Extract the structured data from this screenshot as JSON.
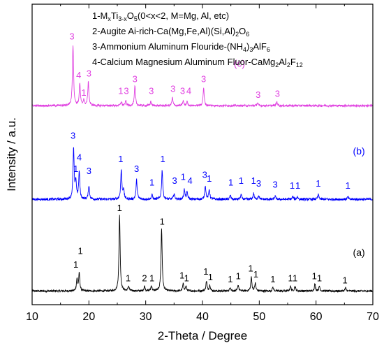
{
  "chart_data": {
    "type": "line",
    "xlabel": "2-Theta / Degree",
    "ylabel": "Intensity / a.u.",
    "xlim": [
      10,
      70
    ],
    "x_ticks": [
      "10",
      "20",
      "30",
      "40",
      "50",
      "60",
      "70"
    ],
    "y_ticks": "none",
    "legend": {
      "placement": "top-right",
      "entries": [
        {
          "parts": [
            [
              "1-M",
              ""
            ],
            [
              "x",
              "sub"
            ],
            [
              "Ti",
              ""
            ],
            [
              "3-x",
              "sub"
            ],
            [
              "O",
              ""
            ],
            [
              "5",
              "sub"
            ],
            [
              "(0<x<2, M=Mg, Al, etc)",
              ""
            ]
          ]
        },
        {
          "parts": [
            [
              "2-Augite Ai-rich-Ca(Mg,Fe,Al)(Si,Al)",
              ""
            ],
            [
              "2",
              "sub"
            ],
            [
              "O",
              ""
            ],
            [
              "6",
              "sub"
            ]
          ]
        },
        {
          "parts": [
            [
              "3-Ammonium Aluminum Flouride-(NH",
              ""
            ],
            [
              "4",
              "sub"
            ],
            [
              ")",
              ""
            ],
            [
              "3",
              "sub"
            ],
            [
              "AlF",
              ""
            ],
            [
              "6",
              "sub"
            ]
          ]
        },
        {
          "parts": [
            [
              "4-Calcium Magnesium Aluminum Fluor-CaMg",
              ""
            ],
            [
              "2",
              "sub"
            ],
            [
              "Al",
              ""
            ],
            [
              "2",
              "sub"
            ],
            [
              "F",
              ""
            ],
            [
              "12",
              "sub"
            ]
          ]
        }
      ]
    },
    "series": [
      {
        "label": "(a)",
        "color": "#000000",
        "baseline": 0.0,
        "noise": 0.05,
        "peaks": [
          {
            "x": 17.9,
            "h": 0.3
          },
          {
            "x": 18.3,
            "h": 0.45
          },
          {
            "x": 25.4,
            "h": 1.95
          },
          {
            "x": 27.0,
            "h": 0.12
          },
          {
            "x": 29.8,
            "h": 0.12
          },
          {
            "x": 31.0,
            "h": 0.13
          },
          {
            "x": 32.8,
            "h": 1.6
          },
          {
            "x": 36.6,
            "h": 0.18
          },
          {
            "x": 37.1,
            "h": 0.12
          },
          {
            "x": 40.7,
            "h": 0.25
          },
          {
            "x": 41.3,
            "h": 0.15
          },
          {
            "x": 44.9,
            "h": 0.1
          },
          {
            "x": 46.3,
            "h": 0.15
          },
          {
            "x": 48.6,
            "h": 0.35
          },
          {
            "x": 49.3,
            "h": 0.2
          },
          {
            "x": 52.4,
            "h": 0.1
          },
          {
            "x": 55.5,
            "h": 0.12
          },
          {
            "x": 56.3,
            "h": 0.12
          },
          {
            "x": 59.8,
            "h": 0.18
          },
          {
            "x": 60.6,
            "h": 0.12
          },
          {
            "x": 65.2,
            "h": 0.08
          }
        ],
        "peak_labels": [
          {
            "x": 17.7,
            "y": 0.6,
            "text": "1"
          },
          {
            "x": 18.5,
            "y": 0.95,
            "text": "1"
          },
          {
            "x": 25.4,
            "y": 2.05,
            "text": "1"
          },
          {
            "x": 26.9,
            "y": 0.25,
            "text": "1"
          },
          {
            "x": 29.8,
            "y": 0.25,
            "text": "2"
          },
          {
            "x": 31.1,
            "y": 0.25,
            "text": "1"
          },
          {
            "x": 32.9,
            "y": 1.7,
            "text": "1"
          },
          {
            "x": 36.4,
            "y": 0.32,
            "text": "1"
          },
          {
            "x": 37.2,
            "y": 0.25,
            "text": "1"
          },
          {
            "x": 40.6,
            "y": 0.42,
            "text": "1"
          },
          {
            "x": 41.4,
            "y": 0.28,
            "text": "1"
          },
          {
            "x": 44.9,
            "y": 0.22,
            "text": "1"
          },
          {
            "x": 46.3,
            "y": 0.3,
            "text": "1"
          },
          {
            "x": 48.5,
            "y": 0.5,
            "text": "1"
          },
          {
            "x": 49.4,
            "y": 0.35,
            "text": "1"
          },
          {
            "x": 52.4,
            "y": 0.22,
            "text": "1"
          },
          {
            "x": 55.5,
            "y": 0.25,
            "text": "1"
          },
          {
            "x": 56.3,
            "y": 0.25,
            "text": "1"
          },
          {
            "x": 59.7,
            "y": 0.3,
            "text": "1"
          },
          {
            "x": 60.6,
            "y": 0.25,
            "text": "1"
          },
          {
            "x": 65.1,
            "y": 0.2,
            "text": "1"
          }
        ],
        "name_label": {
          "x": 66.5,
          "y": 0.9
        }
      },
      {
        "label": "(b)",
        "color": "#0000ff",
        "baseline": 2.35,
        "noise": 0.06,
        "peaks": [
          {
            "x": 17.3,
            "h": 1.3
          },
          {
            "x": 17.7,
            "h": 0.45
          },
          {
            "x": 18.3,
            "h": 0.7
          },
          {
            "x": 20.0,
            "h": 0.35
          },
          {
            "x": 25.7,
            "h": 0.75
          },
          {
            "x": 26.1,
            "h": 0.25
          },
          {
            "x": 28.4,
            "h": 0.5
          },
          {
            "x": 31.1,
            "h": 0.12
          },
          {
            "x": 32.9,
            "h": 0.75
          },
          {
            "x": 35.0,
            "h": 0.15
          },
          {
            "x": 36.8,
            "h": 0.25
          },
          {
            "x": 37.3,
            "h": 0.18
          },
          {
            "x": 40.5,
            "h": 0.35
          },
          {
            "x": 41.2,
            "h": 0.25
          },
          {
            "x": 44.9,
            "h": 0.1
          },
          {
            "x": 46.8,
            "h": 0.12
          },
          {
            "x": 49.0,
            "h": 0.15
          },
          {
            "x": 49.9,
            "h": 0.1
          },
          {
            "x": 52.8,
            "h": 0.08
          },
          {
            "x": 55.9,
            "h": 0.07
          },
          {
            "x": 56.7,
            "h": 0.07
          },
          {
            "x": 60.4,
            "h": 0.12
          },
          {
            "x": 65.6,
            "h": 0.06
          }
        ],
        "peak_labels": [
          {
            "x": 17.2,
            "y": 3.9,
            "text": "3"
          },
          {
            "x": 17.7,
            "y": 3.05,
            "text": "1"
          },
          {
            "x": 18.3,
            "y": 3.35,
            "text": "4"
          },
          {
            "x": 20.0,
            "y": 3.0,
            "text": "3"
          },
          {
            "x": 25.6,
            "y": 3.3,
            "text": "1"
          },
          {
            "x": 28.4,
            "y": 3.05,
            "text": "3"
          },
          {
            "x": 31.1,
            "y": 2.7,
            "text": "1"
          },
          {
            "x": 33.0,
            "y": 3.3,
            "text": "1"
          },
          {
            "x": 35.1,
            "y": 2.75,
            "text": "3"
          },
          {
            "x": 36.6,
            "y": 2.85,
            "text": "1"
          },
          {
            "x": 37.8,
            "y": 2.75,
            "text": "4"
          },
          {
            "x": 40.4,
            "y": 2.9,
            "text": "3"
          },
          {
            "x": 41.2,
            "y": 2.8,
            "text": "1"
          },
          {
            "x": 45.0,
            "y": 2.7,
            "text": "1"
          },
          {
            "x": 46.8,
            "y": 2.75,
            "text": "1"
          },
          {
            "x": 49.0,
            "y": 2.75,
            "text": "1"
          },
          {
            "x": 49.9,
            "y": 2.68,
            "text": "3"
          },
          {
            "x": 52.8,
            "y": 2.65,
            "text": "3"
          },
          {
            "x": 55.8,
            "y": 2.62,
            "text": "1"
          },
          {
            "x": 56.8,
            "y": 2.62,
            "text": "1"
          },
          {
            "x": 60.4,
            "y": 2.68,
            "text": "1"
          },
          {
            "x": 65.6,
            "y": 2.62,
            "text": "1"
          }
        ],
        "name_label": {
          "x": 66.5,
          "y": 3.5
        }
      },
      {
        "label": "(c)",
        "color": "#e040e0",
        "baseline": 4.75,
        "noise": 0.05,
        "peaks": [
          {
            "x": 17.2,
            "h": 1.55
          },
          {
            "x": 18.4,
            "h": 0.55
          },
          {
            "x": 19.1,
            "h": 0.15
          },
          {
            "x": 19.9,
            "h": 0.6
          },
          {
            "x": 25.7,
            "h": 0.1
          },
          {
            "x": 26.5,
            "h": 0.12
          },
          {
            "x": 28.1,
            "h": 0.5
          },
          {
            "x": 30.9,
            "h": 0.1
          },
          {
            "x": 34.7,
            "h": 0.2
          },
          {
            "x": 36.6,
            "h": 0.12
          },
          {
            "x": 37.3,
            "h": 0.1
          },
          {
            "x": 40.2,
            "h": 0.45
          },
          {
            "x": 49.7,
            "h": 0.07
          },
          {
            "x": 53.1,
            "h": 0.1
          }
        ],
        "peak_labels": [
          {
            "x": 17.0,
            "y": 6.45,
            "text": "3"
          },
          {
            "x": 18.2,
            "y": 5.45,
            "text": "4"
          },
          {
            "x": 19.1,
            "y": 5.0,
            "text": "1"
          },
          {
            "x": 20.0,
            "y": 5.5,
            "text": "3"
          },
          {
            "x": 25.6,
            "y": 5.05,
            "text": "1"
          },
          {
            "x": 26.6,
            "y": 5.05,
            "text": "3"
          },
          {
            "x": 28.1,
            "y": 5.35,
            "text": "3"
          },
          {
            "x": 31.0,
            "y": 5.05,
            "text": "3"
          },
          {
            "x": 34.8,
            "y": 5.1,
            "text": "3"
          },
          {
            "x": 36.5,
            "y": 5.05,
            "text": "3"
          },
          {
            "x": 37.6,
            "y": 5.05,
            "text": "4"
          },
          {
            "x": 40.2,
            "y": 5.35,
            "text": "3"
          },
          {
            "x": 49.8,
            "y": 4.95,
            "text": "3"
          },
          {
            "x": 53.2,
            "y": 4.98,
            "text": "3"
          }
        ],
        "name_label": {
          "x": 45.5,
          "y": 5.75
        }
      }
    ],
    "ylim": [
      -0.35,
      7.35
    ]
  }
}
